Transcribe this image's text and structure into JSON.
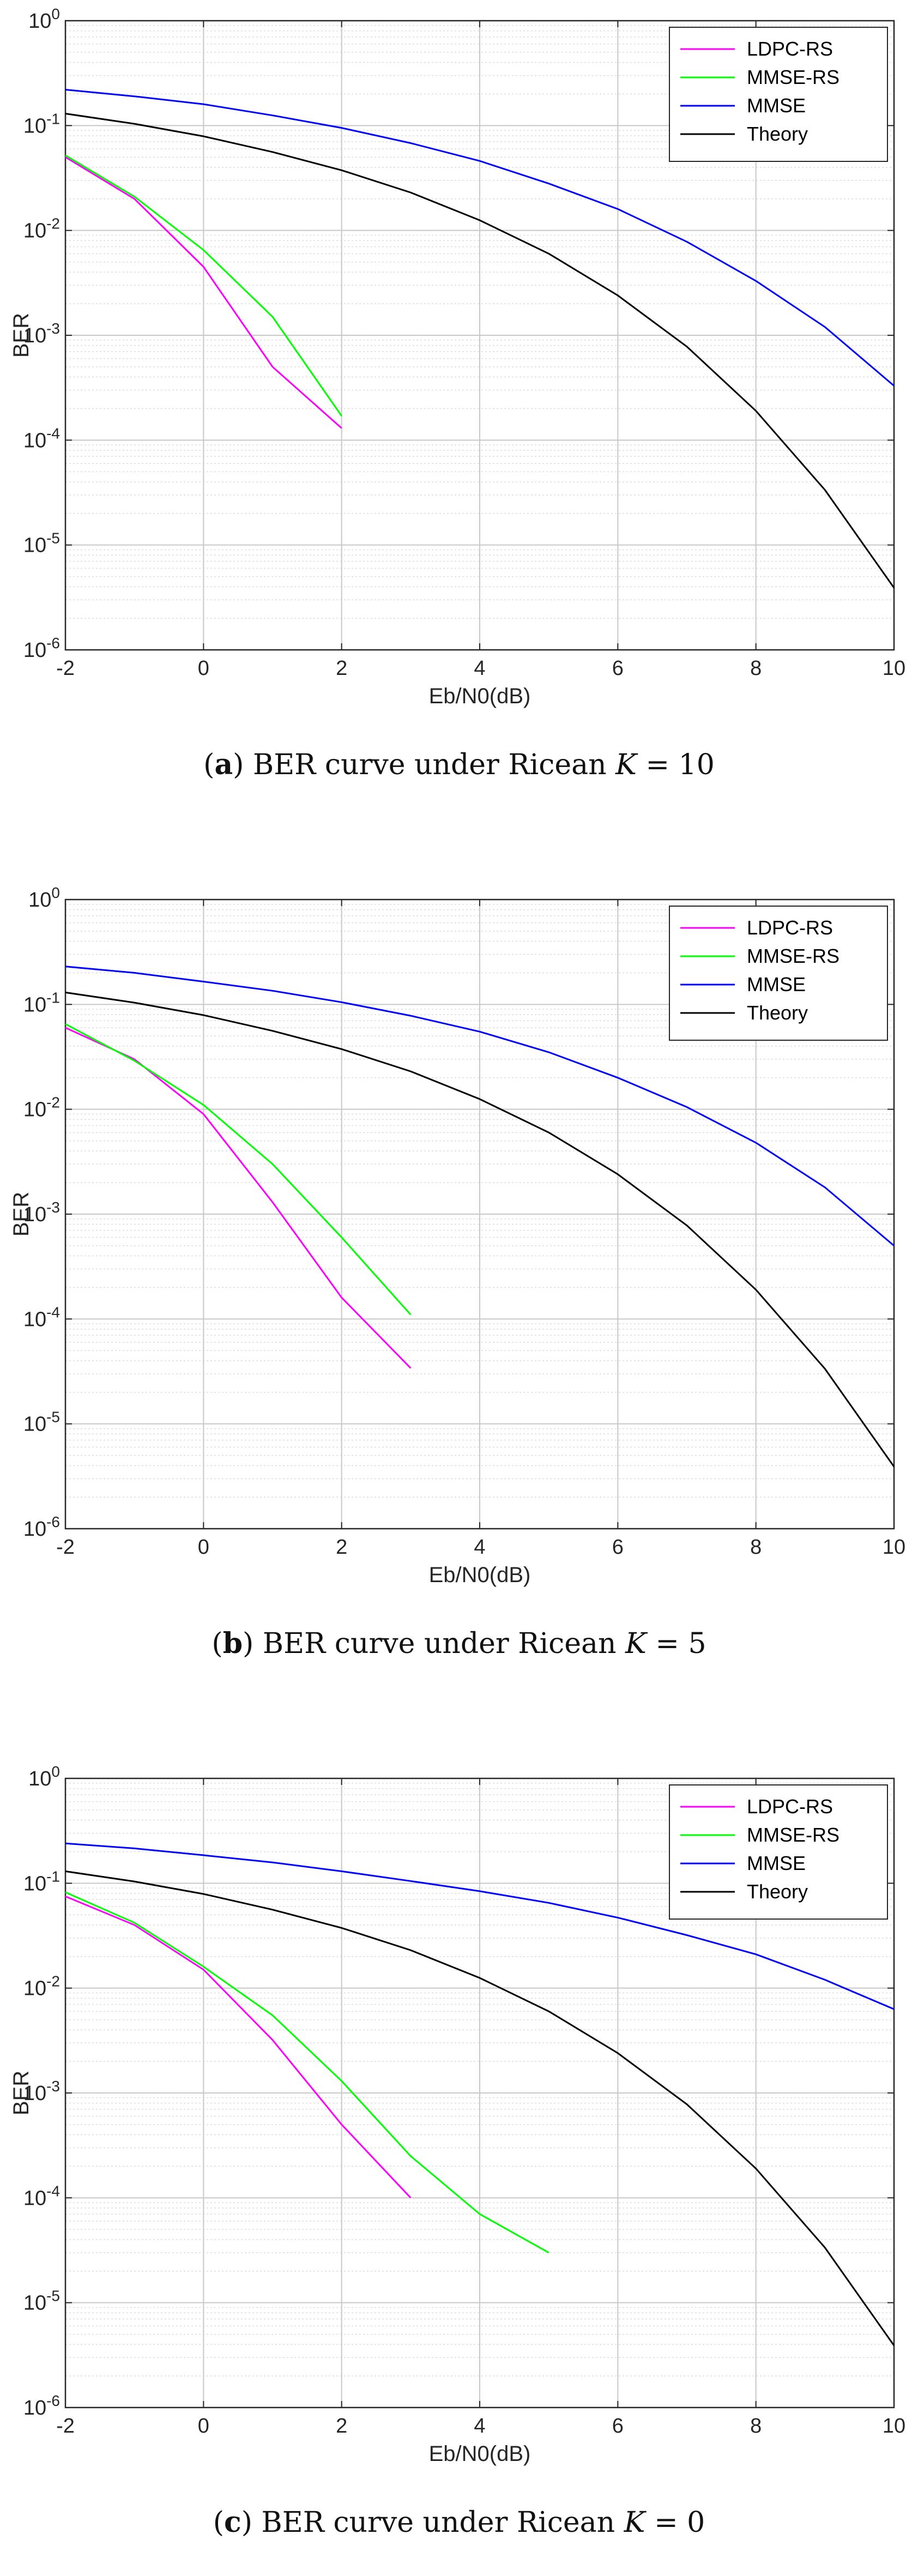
{
  "chart_data": [
    {
      "type": "line",
      "caption": {
        "letter": "a",
        "text": "BER curve under Ricean",
        "var": "K",
        "eq": "= 10"
      },
      "xlabel": "Eb/N0(dB)",
      "ylabel": "BER",
      "yscale": "log",
      "xlim": [
        -2,
        10
      ],
      "ylim": [
        1e-06,
        1
      ],
      "xticks": [
        -2,
        0,
        2,
        4,
        6,
        8,
        10
      ],
      "grid": true,
      "legend_position": "top-right",
      "series": [
        {
          "name": "LDPC-RS",
          "color": "#ff00ff",
          "x": [
            -2,
            -1,
            0,
            1,
            2
          ],
          "y": [
            0.05,
            0.02,
            0.0045,
            0.0005,
            0.00013
          ]
        },
        {
          "name": "MMSE-RS",
          "color": "#00ff00",
          "x": [
            -2,
            -1,
            0,
            1,
            2
          ],
          "y": [
            0.052,
            0.021,
            0.0065,
            0.0015,
            0.00017
          ]
        },
        {
          "name": "MMSE",
          "color": "#0000ff",
          "x": [
            -2,
            -1,
            0,
            1,
            2,
            3,
            4,
            5,
            6,
            7,
            8,
            9,
            10
          ],
          "y": [
            0.22,
            0.19,
            0.16,
            0.125,
            0.095,
            0.068,
            0.046,
            0.028,
            0.016,
            0.0078,
            0.0033,
            0.0012,
            0.00033
          ]
        },
        {
          "name": "Theory",
          "color": "#000000",
          "x": [
            -2,
            -1,
            0,
            1,
            2,
            3,
            4,
            5,
            6,
            7,
            8,
            9,
            10
          ],
          "y": [
            0.13,
            0.104,
            0.079,
            0.056,
            0.0375,
            0.023,
            0.0125,
            0.006,
            0.0024,
            0.00078,
            0.00019,
            3.35e-05,
            3.9e-06
          ]
        }
      ]
    },
    {
      "type": "line",
      "caption": {
        "letter": "b",
        "text": "BER curve under Ricean",
        "var": "K",
        "eq": "= 5"
      },
      "xlabel": "Eb/N0(dB)",
      "ylabel": "BER",
      "yscale": "log",
      "xlim": [
        -2,
        10
      ],
      "ylim": [
        1e-06,
        1
      ],
      "xticks": [
        -2,
        0,
        2,
        4,
        6,
        8,
        10
      ],
      "grid": true,
      "legend_position": "top-right",
      "series": [
        {
          "name": "LDPC-RS",
          "color": "#ff00ff",
          "x": [
            -2,
            -1,
            0,
            1,
            2,
            3
          ],
          "y": [
            0.06,
            0.03,
            0.009,
            0.0013,
            0.00016,
            3.4e-05
          ]
        },
        {
          "name": "MMSE-RS",
          "color": "#00ff00",
          "x": [
            -2,
            -1,
            0,
            1,
            2,
            3
          ],
          "y": [
            0.065,
            0.029,
            0.011,
            0.003,
            0.0006,
            0.00011
          ]
        },
        {
          "name": "MMSE",
          "color": "#0000ff",
          "x": [
            -2,
            -1,
            0,
            1,
            2,
            3,
            4,
            5,
            6,
            7,
            8,
            9,
            10
          ],
          "y": [
            0.23,
            0.2,
            0.165,
            0.135,
            0.105,
            0.078,
            0.055,
            0.035,
            0.02,
            0.0105,
            0.0048,
            0.0018,
            0.0005
          ]
        },
        {
          "name": "Theory",
          "color": "#000000",
          "x": [
            -2,
            -1,
            0,
            1,
            2,
            3,
            4,
            5,
            6,
            7,
            8,
            9,
            10
          ],
          "y": [
            0.13,
            0.104,
            0.079,
            0.056,
            0.0375,
            0.023,
            0.0125,
            0.006,
            0.0024,
            0.00078,
            0.00019,
            3.35e-05,
            3.9e-06
          ]
        }
      ]
    },
    {
      "type": "line",
      "caption": {
        "letter": "c",
        "text": "BER curve under Ricean",
        "var": "K",
        "eq": "= 0"
      },
      "xlabel": "Eb/N0(dB)",
      "ylabel": "BER",
      "yscale": "log",
      "xlim": [
        -2,
        10
      ],
      "ylim": [
        1e-06,
        1
      ],
      "xticks": [
        -2,
        0,
        2,
        4,
        6,
        8,
        10
      ],
      "grid": true,
      "legend_position": "top-right",
      "series": [
        {
          "name": "LDPC-RS",
          "color": "#ff00ff",
          "x": [
            -2,
            -1,
            0,
            1,
            2,
            3
          ],
          "y": [
            0.075,
            0.04,
            0.015,
            0.0032,
            0.0005,
            0.0001
          ]
        },
        {
          "name": "MMSE-RS",
          "color": "#00ff00",
          "x": [
            -2,
            -1,
            0,
            1,
            2,
            3,
            4,
            5
          ],
          "y": [
            0.082,
            0.042,
            0.016,
            0.0055,
            0.0013,
            0.00025,
            7e-05,
            3e-05
          ]
        },
        {
          "name": "MMSE",
          "color": "#0000ff",
          "x": [
            -2,
            -1,
            0,
            1,
            2,
            3,
            4,
            5,
            6,
            7,
            8,
            9,
            10
          ],
          "y": [
            0.24,
            0.215,
            0.185,
            0.158,
            0.13,
            0.105,
            0.084,
            0.065,
            0.047,
            0.032,
            0.021,
            0.012,
            0.0063
          ]
        },
        {
          "name": "Theory",
          "color": "#000000",
          "x": [
            -2,
            -1,
            0,
            1,
            2,
            3,
            4,
            5,
            6,
            7,
            8,
            9,
            10
          ],
          "y": [
            0.13,
            0.104,
            0.079,
            0.056,
            0.0375,
            0.023,
            0.0125,
            0.006,
            0.0024,
            0.00078,
            0.00019,
            3.35e-05,
            3.9e-06
          ]
        }
      ]
    }
  ]
}
